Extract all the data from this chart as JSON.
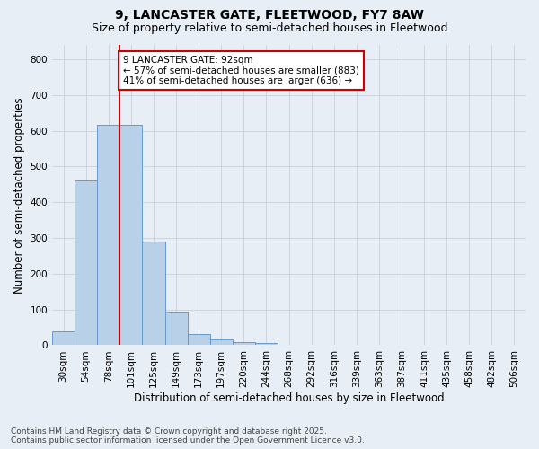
{
  "title_line1": "9, LANCASTER GATE, FLEETWOOD, FY7 8AW",
  "title_line2": "Size of property relative to semi-detached houses in Fleetwood",
  "xlabel": "Distribution of semi-detached houses by size in Fleetwood",
  "ylabel": "Number of semi-detached properties",
  "categories": [
    "30sqm",
    "54sqm",
    "78sqm",
    "101sqm",
    "125sqm",
    "149sqm",
    "173sqm",
    "197sqm",
    "220sqm",
    "244sqm",
    "268sqm",
    "292sqm",
    "316sqm",
    "339sqm",
    "363sqm",
    "387sqm",
    "411sqm",
    "435sqm",
    "458sqm",
    "482sqm",
    "506sqm"
  ],
  "values": [
    38,
    460,
    617,
    617,
    290,
    93,
    32,
    15,
    9,
    5,
    0,
    0,
    0,
    0,
    0,
    0,
    0,
    0,
    0,
    0,
    0
  ],
  "bar_color": "#b8d0e8",
  "bar_edge_color": "#6699cc",
  "vline_color": "#cc0000",
  "vline_x": 2.5,
  "annotation_label": "9 LANCASTER GATE: 92sqm",
  "annotation_line2": "← 57% of semi-detached houses are smaller (883)",
  "annotation_line3": "41% of semi-detached houses are larger (636) →",
  "annotation_box_color": "#ffffff",
  "annotation_box_edge_color": "#cc0000",
  "ylim": [
    0,
    840
  ],
  "yticks": [
    0,
    100,
    200,
    300,
    400,
    500,
    600,
    700,
    800
  ],
  "grid_color": "#c8d0dc",
  "bg_color": "#e8eef6",
  "fig_bg_color": "#e8eef6",
  "footer_line1": "Contains HM Land Registry data © Crown copyright and database right 2025.",
  "footer_line2": "Contains public sector information licensed under the Open Government Licence v3.0.",
  "title_fontsize": 10,
  "subtitle_fontsize": 9,
  "axis_label_fontsize": 8.5,
  "tick_fontsize": 7.5,
  "annotation_fontsize": 7.5,
  "footer_fontsize": 6.5
}
